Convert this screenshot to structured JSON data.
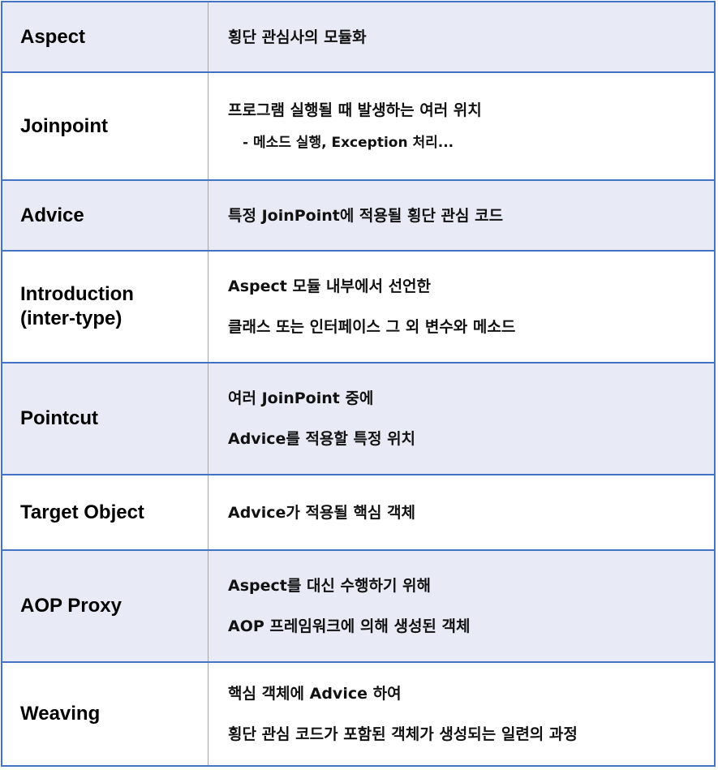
{
  "rows": [
    {
      "term": "Aspect",
      "lines": [
        "횡단 관심사의 모듈화"
      ]
    },
    {
      "term": "Joinpoint",
      "lines": [
        "프로그램 실행될 때 발생하는 여러 위치",
        "- 메소드 실행, Exception 처리..."
      ]
    },
    {
      "term": "Advice",
      "lines": [
        "특정 JoinPoint에 적용될 횡단 관심 코드"
      ]
    },
    {
      "term": "Introduction (inter-type)",
      "lines": [
        "Aspect 모듈 내부에서 선언한",
        "클래스 또는 인터페이스 그 외 변수와 메소드"
      ]
    },
    {
      "term": "Pointcut",
      "lines": [
        "여러 JoinPoint 중에",
        "Advice를 적용할 특정 위치"
      ]
    },
    {
      "term": "Target Object",
      "lines": [
        "Advice가 적용될 핵심 객체"
      ]
    },
    {
      "term": "AOP Proxy",
      "lines": [
        "Aspect를 대신 수행하기 위해",
        "AOP 프레임워크에 의해 생성된 객체"
      ]
    },
    {
      "term": "Weaving",
      "lines": [
        "핵심 객체에 Advice 하여",
        "횡단 관심 코드가 포함된 객체가 생성되는 일련의 과정"
      ]
    }
  ]
}
